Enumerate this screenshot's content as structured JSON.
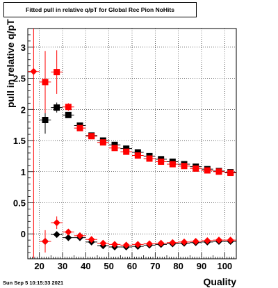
{
  "chart_data": {
    "type": "scatter",
    "title": "Fitted pull in relative q/pT for Global Rec Pion NoHits",
    "xlabel": "Quality",
    "ylabel": "pull in relative q/pT",
    "xlim": [
      15,
      105
    ],
    "ylim": [
      -0.4,
      3.3
    ],
    "xticks": [
      20,
      30,
      40,
      50,
      60,
      70,
      80,
      90,
      100
    ],
    "yticks": [
      0,
      0.5,
      1,
      1.5,
      2,
      2.5,
      3
    ],
    "grid": true,
    "series": [
      {
        "marker": "square",
        "color": "#000000",
        "x": [
          22.5,
          27.5,
          32.5,
          37.5,
          42.5,
          47.5,
          52.5,
          57.5,
          62.5,
          67.5,
          72.5,
          77.5,
          82.5,
          87.5,
          92.5,
          97.5,
          102.5
        ],
        "y": [
          1.83,
          2.03,
          1.91,
          1.74,
          1.58,
          1.5,
          1.43,
          1.37,
          1.31,
          1.25,
          1.2,
          1.16,
          1.12,
          1.08,
          1.04,
          1.01,
          0.99
        ],
        "err": [
          0.22,
          0.08,
          0.04,
          0.03,
          0.02,
          0.02,
          0.02,
          0.02,
          0.02,
          0.02,
          0.02,
          0.02,
          0.02,
          0.02,
          0.02,
          0.02,
          0.02
        ]
      },
      {
        "marker": "square",
        "color": "#ff0000",
        "x": [
          22.5,
          27.5,
          32.5,
          37.5,
          42.5,
          47.5,
          52.5,
          57.5,
          62.5,
          67.5,
          72.5,
          77.5,
          82.5,
          87.5,
          92.5,
          97.5,
          102.5
        ],
        "y": [
          2.44,
          2.6,
          2.04,
          1.7,
          1.57,
          1.47,
          1.38,
          1.32,
          1.26,
          1.21,
          1.16,
          1.12,
          1.09,
          1.05,
          1.02,
          1.0,
          0.98
        ],
        "err": [
          0.5,
          0.35,
          0.06,
          0.04,
          0.03,
          0.02,
          0.02,
          0.02,
          0.02,
          0.02,
          0.02,
          0.02,
          0.02,
          0.02,
          0.02,
          0.02,
          0.02
        ]
      },
      {
        "marker": "diamond",
        "color": "#000000",
        "x": [
          22.5,
          27.5,
          32.5,
          37.5,
          42.5,
          47.5,
          52.5,
          57.5,
          62.5,
          67.5,
          72.5,
          77.5,
          82.5,
          87.5,
          92.5,
          97.5,
          102.5
        ],
        "y": [
          -0.12,
          -0.01,
          -0.06,
          -0.06,
          -0.13,
          -0.19,
          -0.21,
          -0.21,
          -0.2,
          -0.18,
          -0.17,
          -0.16,
          -0.15,
          -0.14,
          -0.13,
          -0.12,
          -0.12
        ],
        "err": [
          0.05,
          0.03,
          0.02,
          0.02,
          0.02,
          0.02,
          0.02,
          0.02,
          0.02,
          0.02,
          0.02,
          0.02,
          0.02,
          0.02,
          0.02,
          0.02,
          0.02
        ]
      },
      {
        "marker": "diamond",
        "color": "#ff0000",
        "x": [
          17.5,
          22.5,
          27.5,
          32.5,
          37.5,
          42.5,
          47.5,
          52.5,
          57.5,
          62.5,
          67.5,
          72.5,
          77.5,
          82.5,
          87.5,
          92.5,
          97.5,
          102.5
        ],
        "y": [
          2.61,
          -0.12,
          0.18,
          0.03,
          -0.03,
          -0.09,
          -0.15,
          -0.17,
          -0.18,
          -0.17,
          -0.16,
          -0.15,
          -0.14,
          -0.13,
          -0.12,
          -0.11,
          -0.1,
          -0.1
        ],
        "err": [
          3.0,
          0.18,
          0.1,
          0.03,
          0.02,
          0.02,
          0.02,
          0.02,
          0.02,
          0.02,
          0.02,
          0.02,
          0.02,
          0.02,
          0.02,
          0.02,
          0.02,
          0.02
        ]
      }
    ]
  },
  "footer": {
    "date": "Sun Sep  5 10:15:33 2021"
  }
}
